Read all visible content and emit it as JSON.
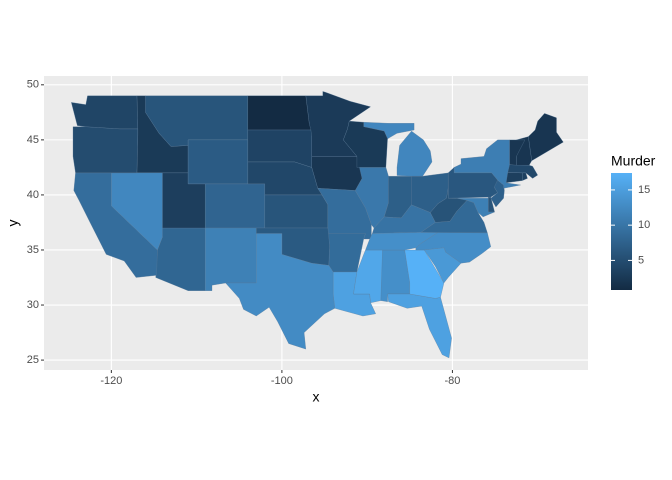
{
  "chart_data": {
    "type": "choropleth",
    "x_label": "x",
    "y_label": "y",
    "legend_title": "Murder",
    "xlim": [
      -127.9,
      -64.1
    ],
    "ylim": [
      24.1,
      50.8
    ],
    "xticks": [
      -120,
      -100,
      -80
    ],
    "yticks": [
      25,
      30,
      35,
      40,
      45,
      50
    ],
    "values": [
      13.2,
      8.1,
      8.8,
      9.0,
      7.9,
      3.3,
      5.9,
      15.4,
      17.4,
      2.6,
      10.4,
      7.2,
      2.2,
      6.0,
      9.7,
      15.4,
      2.1,
      11.3,
      4.4,
      12.1,
      2.7,
      16.1,
      9.0,
      6.0,
      4.3,
      12.2,
      2.1,
      7.4,
      11.4,
      11.1,
      13.0,
      0.8,
      7.3,
      6.6,
      4.9,
      6.3,
      3.4,
      14.4,
      3.8,
      13.2,
      12.7,
      3.2,
      2.2,
      8.5,
      4.0,
      5.7,
      2.6,
      6.8
    ],
    "low_color": "#132B43",
    "high_color": "#56B1F7",
    "colorlim": [
      0.8,
      17.4
    ],
    "colorticks": [
      5,
      10,
      15
    ],
    "grid": true
  }
}
